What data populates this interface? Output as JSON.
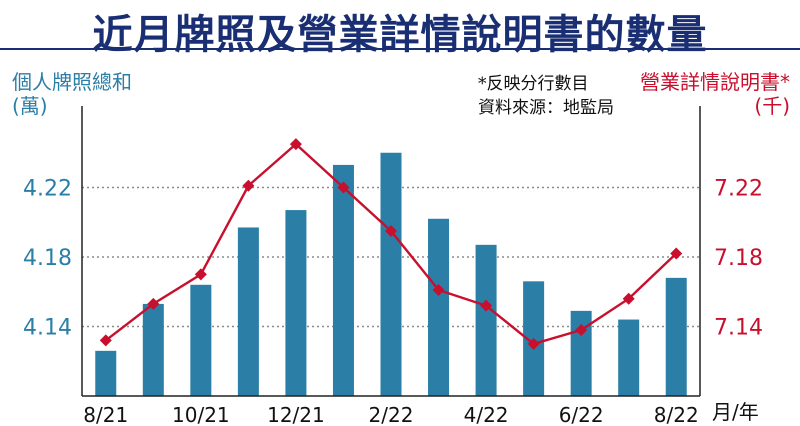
{
  "title": "近月牌照及營業詳情說明書的數量",
  "left_axis": {
    "label_line1": "個人牌照總和",
    "label_line2": "(萬)"
  },
  "right_axis": {
    "label_line1": "營業詳情說明書*",
    "label_line2": "(千)"
  },
  "notes": {
    "line1": "*反映分行數目",
    "line2": "資料來源：地監局"
  },
  "x_unit": "月/年",
  "colors": {
    "bar": "#2b7ea6",
    "line": "#c8102e",
    "title": "#1a2f73",
    "grid": "#8a8a8a"
  },
  "chart_data": {
    "type": "bar",
    "title": "近月牌照及營業詳情說明書的數量",
    "xlabel": "月/年",
    "categories": [
      "8/21",
      "9/21",
      "10/21",
      "11/21",
      "12/21",
      "1/22",
      "2/22",
      "3/22",
      "4/22",
      "5/22",
      "6/22",
      "7/22",
      "8/22"
    ],
    "x_tick_labels": [
      "8/21",
      "10/21",
      "12/21",
      "2/22",
      "4/22",
      "6/22",
      "8/22"
    ],
    "series": [
      {
        "name": "個人牌照總和",
        "type": "bar",
        "axis": "left",
        "unit": "(萬)",
        "values": [
          4.126,
          4.153,
          4.164,
          4.197,
          4.207,
          4.233,
          4.24,
          4.202,
          4.187,
          4.166,
          4.149,
          4.144,
          4.168
        ]
      },
      {
        "name": "營業詳情說明書*",
        "type": "line",
        "axis": "right",
        "unit": "(千)",
        "values": [
          7.132,
          7.153,
          7.17,
          7.221,
          7.245,
          7.22,
          7.195,
          7.161,
          7.152,
          7.13,
          7.138,
          7.156,
          7.182
        ]
      }
    ],
    "left_axis": {
      "ticks": [
        "4.14",
        "4.18",
        "4.22"
      ],
      "tick_values": [
        4.14,
        4.18,
        4.22
      ],
      "ylim": [
        4.1,
        4.26
      ]
    },
    "right_axis": {
      "ticks": [
        "7.14",
        "7.18",
        "7.22"
      ],
      "tick_values": [
        7.14,
        7.18,
        7.22
      ],
      "ylim": [
        7.1,
        7.26
      ]
    },
    "grid": true
  }
}
